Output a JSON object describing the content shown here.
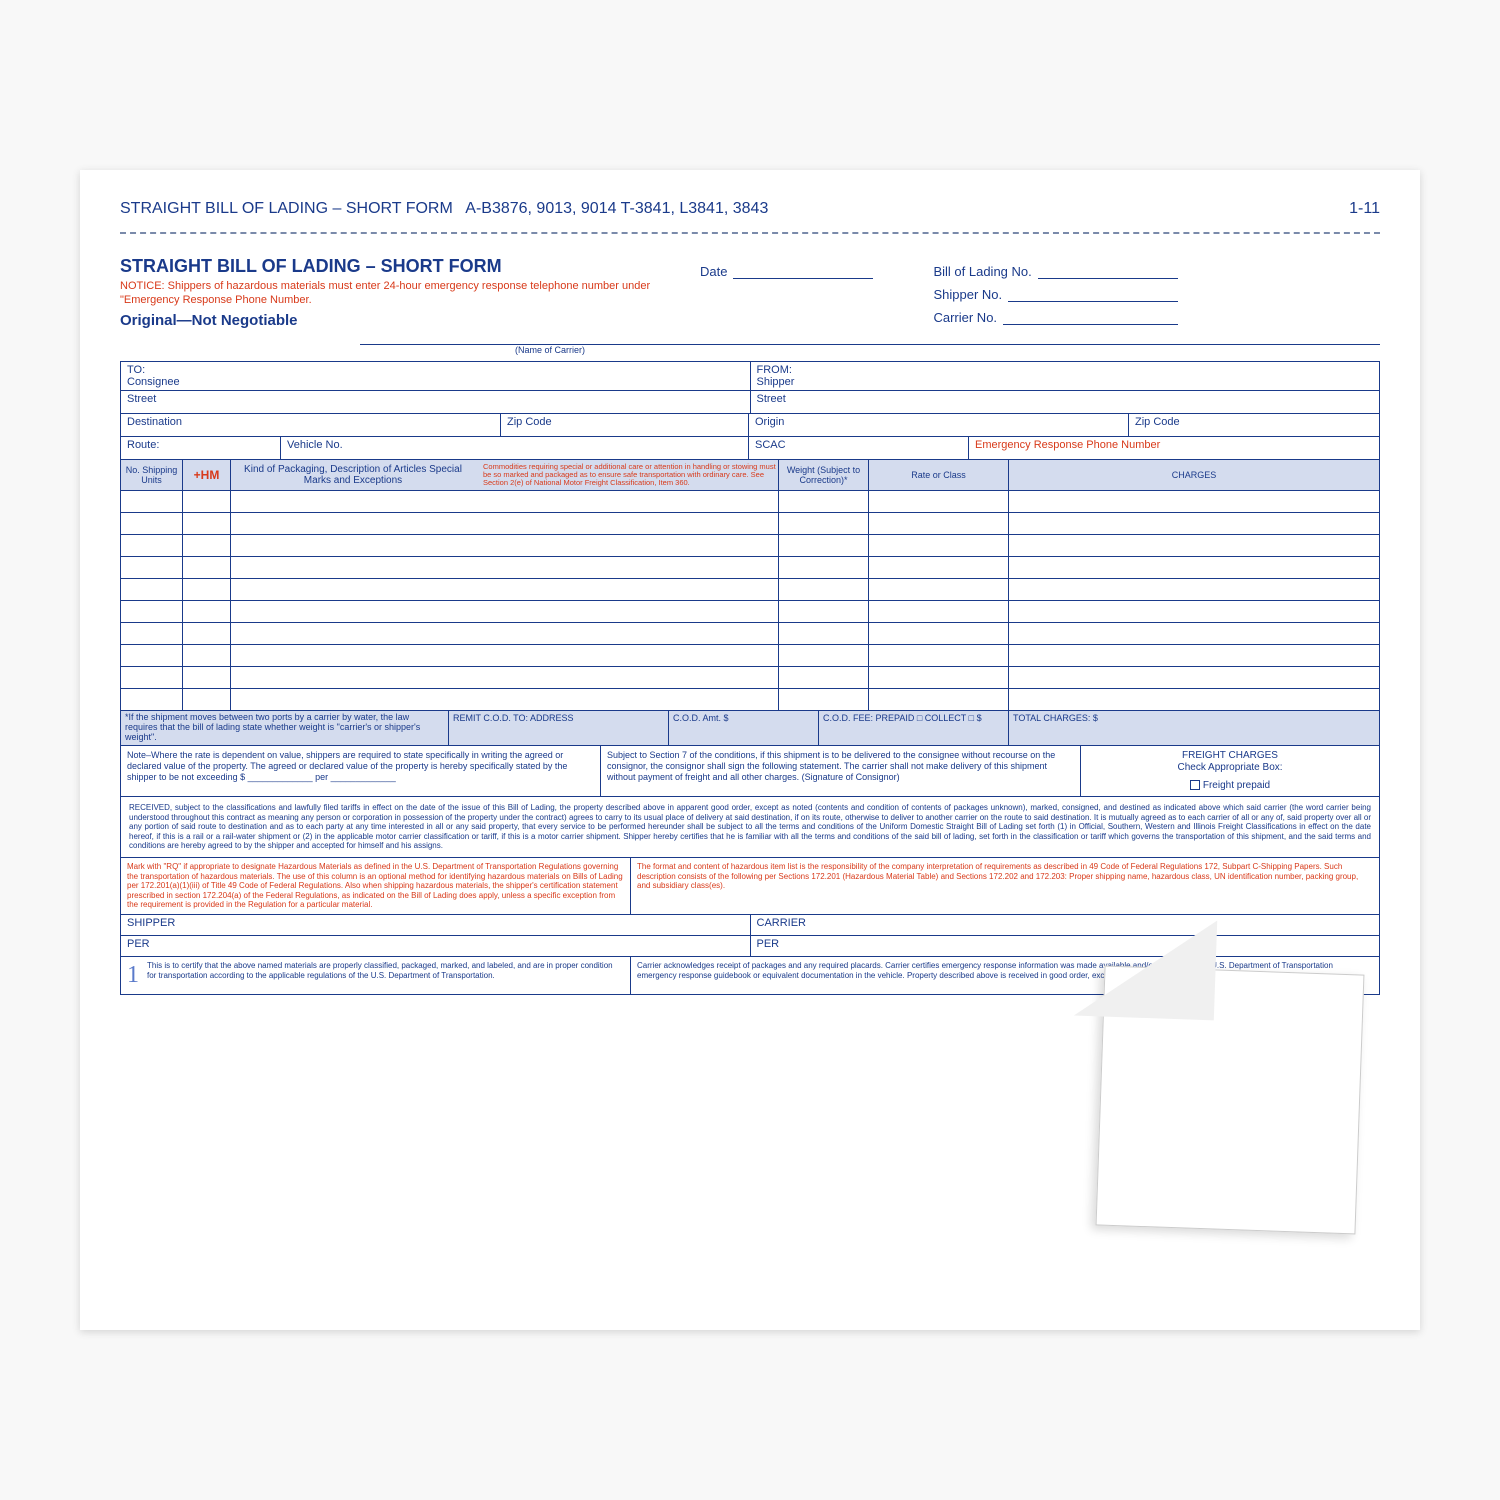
{
  "colors": {
    "primary": "#1a3a8a",
    "warning": "#d83a1a",
    "header_bg": "#d4dcee",
    "page_bg": "#ffffff"
  },
  "top_header": {
    "title": "STRAIGHT BILL OF LADING – SHORT FORM",
    "codes": "A-B3876, 9013, 9014    T-3841, L3841, 3843",
    "page_num": "1-11"
  },
  "title_block": {
    "main": "STRAIGHT BILL OF LADING – SHORT FORM",
    "notice": "NOTICE: Shippers of hazardous materials must enter 24-hour emergency response telephone number under \"Emergency Response Phone Number.",
    "original": "Original—Not Negotiable"
  },
  "meta_labels": {
    "date": "Date",
    "bol_no": "Bill of Lading No.",
    "shipper_no": "Shipper No.",
    "carrier_no": "Carrier No.",
    "carrier_name": "(Name of Carrier)"
  },
  "address": {
    "to": "TO:",
    "consignee": "Consignee",
    "from": "FROM:",
    "shipper": "Shipper",
    "street": "Street",
    "destination": "Destination",
    "zip": "Zip Code",
    "origin": "Origin",
    "route": "Route:",
    "vehicle": "Vehicle No.",
    "scac": "SCAC",
    "emergency": "Emergency Response Phone Number"
  },
  "items_headers": {
    "units": "No. Shipping Units",
    "hm": "+HM",
    "desc_left": "Kind of Packaging, Description of Articles Special Marks and Exceptions",
    "desc_right": "Commodities requiring special or additional care or attention in handling or stowing must be so marked and packaged as to ensure safe transportation with ordinary care. See Section 2(e) of National Motor Freight Classification, Item 360.",
    "weight": "Weight (Subject to Correction)*",
    "rate": "Rate or Class",
    "charges": "CHARGES"
  },
  "item_rows_count": 10,
  "footnote": {
    "note": "*If the shipment moves between two ports by a carrier by water, the law requires that the bill of lading state whether weight is \"carrier's or shipper's weight\".",
    "remit": "REMIT C.O.D. TO: ADDRESS",
    "cod": "C.O.D. Amt. $",
    "codfee": "C.O.D. FEE: PREPAID □  COLLECT □  $",
    "total": "TOTAL CHARGES: $"
  },
  "agreement": {
    "left": "Note–Where the rate is dependent on value, shippers are required to state specifically in writing the agreed or declared value of the property. The agreed or declared value of the property is hereby specifically stated by the shipper to be not exceeding\n$ _____________ per _____________",
    "mid": "Subject to Section 7 of the conditions, if this shipment is to be delivered to the consignee without recourse on the consignor, the consignor shall sign the following statement. The carrier shall not make delivery of this shipment without payment of freight and all other charges.\n\n(Signature of Consignor)",
    "right_title": "FREIGHT CHARGES",
    "right_sub": "Check Appropriate Box:",
    "right_option": "Freight prepaid"
  },
  "received": "RECEIVED, subject to the classifications and lawfully filed tariffs in effect on the date of the issue of this Bill of Lading, the property described above in apparent good order, except as noted (contents and condition of contents of packages unknown), marked, consigned, and destined as indicated above which said carrier (the word carrier being understood throughout this contract as meaning any person or corporation in possession of the property under the contract) agrees to carry to its usual place of delivery at said destination, if on its route, otherwise to deliver to another carrier on the route to said destination. It is mutually agreed as to each carrier of all or any of, said property over all or any portion of said route to destination and as to each party at any time interested in all or any said property, that every service to be performed hereunder shall be subject to all the terms and conditions of the Uniform Domestic Straight Bill of Lading set forth (1) in Official, Southern, Western and Illinois Freight Classifications in effect on the date hereof, if this is a rail or a rail-water shipment or (2) in the applicable motor carrier classification or tariff, if this is a motor carrier shipment. Shipper hereby certifies that he is familiar with all the terms and conditions of the said bill of lading, set forth in the classification or tariff which governs the transportation of this shipment, and the said terms and conditions are hereby agreed to by the shipper and accepted for himself and his assigns.",
  "hazmat": {
    "left": "Mark with \"RQ\" if appropriate to designate Hazardous Materials as defined in the U.S. Department of Transportation Regulations governing the transportation of hazardous materials. The use of this column is an optional method for identifying hazardous materials on Bills of Lading per 172.201(a)(1)(iii) of Title 49 Code of Federal Regulations. Also when shipping hazardous materials, the shipper's certification statement prescribed in section 172.204(a) of the Federal Regulations, as indicated on the Bill of Lading does apply, unless a specific exception from the requirement is provided in the Regulation for a particular material.",
    "right": "The format and content of hazardous item list is the responsibility of the company interpretation of requirements as described in 49 Code of Federal Regulations 172, Subpart C-Shipping Papers. Such description consists of the following per Sections 172.201 (Hazardous Material Table) and Sections 172.202 and 172.203: Proper shipping name, hazardous class, UN identification number, packing group, and subsidiary class(es)."
  },
  "signatures": {
    "shipper": "SHIPPER",
    "carrier": "CARRIER",
    "per": "PER"
  },
  "cert": {
    "num": "1",
    "left": "This is to certify that the above named materials are properly classified, packaged, marked, and labeled, and are in proper condition for transportation according to the applicable regulations of the U.S. Department of Transportation.",
    "right": "Carrier acknowledges receipt of packages and any required placards. Carrier certifies emergency response information was made available and/or carrier has the U.S. Department of Transportation emergency response guidebook or equivalent documentation in the vehicle. Property described above is received in good order, except as noted."
  }
}
